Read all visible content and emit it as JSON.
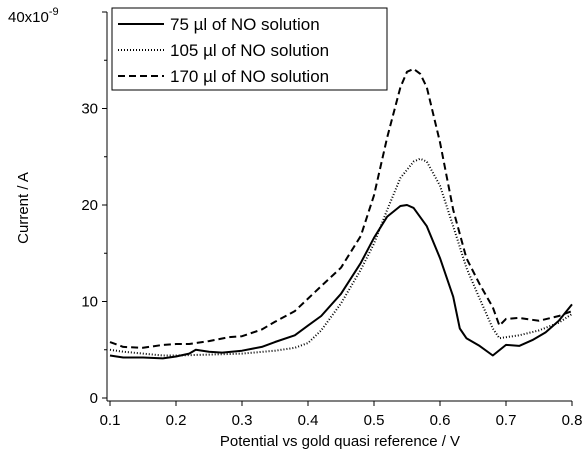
{
  "chart_data": {
    "type": "line",
    "title": "",
    "xlabel": "Potential vs gold quasi reference / V",
    "ylabel": "Current / A",
    "y_multiplier_label": "40x10",
    "y_multiplier_exponent": "-9",
    "xlim": [
      0.1,
      0.8
    ],
    "ylim": [
      0,
      40
    ],
    "y_unit_scale": "1e-9",
    "x_ticks": [
      0.1,
      0.2,
      0.3,
      0.4,
      0.5,
      0.6,
      0.7,
      0.8
    ],
    "x_tick_labels": [
      "0.1",
      "0.2",
      "0.3",
      "0.4",
      "0.5",
      "0.6",
      "0.7",
      "0.8"
    ],
    "y_ticks": [
      0,
      10,
      20,
      30
    ],
    "y_tick_labels": [
      "0",
      "10",
      "20",
      "30"
    ],
    "grid": false,
    "legend_position": "top-left",
    "series": [
      {
        "name": "75 µl of NO solution",
        "dash": "solid",
        "color": "#000000",
        "x": [
          0.1,
          0.12,
          0.15,
          0.18,
          0.2,
          0.22,
          0.23,
          0.25,
          0.27,
          0.3,
          0.33,
          0.35,
          0.38,
          0.4,
          0.42,
          0.45,
          0.48,
          0.5,
          0.52,
          0.54,
          0.55,
          0.56,
          0.58,
          0.6,
          0.62,
          0.63,
          0.64,
          0.66,
          0.68,
          0.7,
          0.72,
          0.74,
          0.76,
          0.78,
          0.8
        ],
        "y": [
          4.4,
          4.2,
          4.2,
          4.1,
          4.3,
          4.6,
          5.0,
          4.8,
          4.7,
          4.9,
          5.3,
          5.8,
          6.5,
          7.5,
          8.5,
          10.8,
          14.0,
          16.6,
          18.8,
          19.9,
          20.0,
          19.7,
          17.8,
          14.5,
          10.5,
          7.2,
          6.2,
          5.4,
          4.4,
          5.5,
          5.4,
          6.0,
          6.8,
          8.0,
          9.7
        ]
      },
      {
        "name": "105 µl of NO solution",
        "dash": "dotted",
        "color": "#000000",
        "x": [
          0.1,
          0.12,
          0.15,
          0.18,
          0.2,
          0.25,
          0.3,
          0.35,
          0.38,
          0.4,
          0.42,
          0.45,
          0.48,
          0.5,
          0.52,
          0.54,
          0.56,
          0.57,
          0.58,
          0.6,
          0.62,
          0.64,
          0.66,
          0.68,
          0.69,
          0.7,
          0.72,
          0.75,
          0.78,
          0.8
        ],
        "y": [
          5.0,
          4.8,
          4.6,
          4.4,
          4.4,
          4.5,
          4.6,
          4.9,
          5.2,
          5.7,
          7.0,
          9.8,
          13.3,
          16.0,
          19.5,
          22.8,
          24.5,
          24.8,
          24.5,
          22.0,
          17.8,
          13.5,
          10.3,
          7.2,
          6.2,
          6.3,
          6.5,
          7.0,
          7.8,
          8.7
        ]
      },
      {
        "name": "170 µl of NO solution",
        "dash": "dashed",
        "color": "#000000",
        "x": [
          0.1,
          0.12,
          0.15,
          0.18,
          0.2,
          0.22,
          0.25,
          0.28,
          0.3,
          0.33,
          0.35,
          0.38,
          0.4,
          0.42,
          0.45,
          0.48,
          0.5,
          0.52,
          0.54,
          0.55,
          0.56,
          0.57,
          0.58,
          0.6,
          0.62,
          0.64,
          0.66,
          0.68,
          0.69,
          0.7,
          0.72,
          0.75,
          0.78,
          0.8
        ],
        "y": [
          5.8,
          5.3,
          5.2,
          5.5,
          5.6,
          5.6,
          5.9,
          6.3,
          6.4,
          7.1,
          7.9,
          9.0,
          10.3,
          11.6,
          13.5,
          16.8,
          21.0,
          27.0,
          32.2,
          33.8,
          34.1,
          33.6,
          32.2,
          26.5,
          19.5,
          14.5,
          11.8,
          9.4,
          7.5,
          8.2,
          8.3,
          8.0,
          8.5,
          9.0
        ]
      }
    ]
  }
}
